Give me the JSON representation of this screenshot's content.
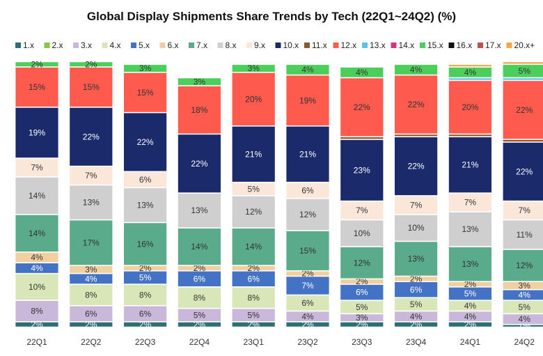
{
  "chart_data": {
    "type": "bar",
    "stacked": true,
    "title": "Global Display Shipments Share Trends by Tech (22Q1~24Q2) (%)",
    "xlabel": "",
    "ylabel": "",
    "ylim": [
      0,
      100
    ],
    "legend_position": "top",
    "categories": [
      "22Q1",
      "22Q2",
      "22Q3",
      "22Q4",
      "23Q1",
      "23Q2",
      "23Q3",
      "23Q4",
      "24Q1",
      "24Q2"
    ],
    "series": [
      {
        "name": "1.x",
        "color": "#2e6f73",
        "values": [
          2,
          2,
          2,
          2,
          2,
          2,
          2,
          2,
          2,
          1
        ]
      },
      {
        "name": "2.x",
        "color": "#8cc63f",
        "values": [
          0,
          0,
          0,
          0,
          0,
          0,
          0,
          0,
          0,
          0
        ]
      },
      {
        "name": "3.x",
        "color": "#c9b8d9",
        "values": [
          8,
          6,
          6,
          5,
          5,
          4,
          3,
          4,
          4,
          4
        ]
      },
      {
        "name": "4.x",
        "color": "#d9e6b8",
        "values": [
          10,
          8,
          8,
          8,
          8,
          6,
          5,
          5,
          4,
          5
        ]
      },
      {
        "name": "5.x",
        "color": "#4472c4",
        "values": [
          4,
          4,
          5,
          6,
          6,
          7,
          6,
          6,
          5,
          4
        ]
      },
      {
        "name": "6.x",
        "color": "#f0cfa0",
        "values": [
          4,
          3,
          2,
          2,
          2,
          2,
          2,
          2,
          2,
          3
        ]
      },
      {
        "name": "7.x",
        "color": "#5aab8c",
        "values": [
          14,
          17,
          16,
          14,
          14,
          15,
          12,
          13,
          13,
          12
        ]
      },
      {
        "name": "8.x",
        "color": "#cfcfcf",
        "values": [
          14,
          13,
          13,
          13,
          12,
          12,
          10,
          10,
          13,
          11
        ]
      },
      {
        "name": "9.x",
        "color": "#fbe6da",
        "values": [
          7,
          7,
          6,
          0,
          5,
          6,
          7,
          7,
          7,
          7
        ]
      },
      {
        "name": "10.x",
        "color": "#1b2a6b",
        "values": [
          19,
          22,
          22,
          22,
          21,
          21,
          23,
          22,
          21,
          22
        ]
      },
      {
        "name": "11.x",
        "color": "#8b5a2b",
        "values": [
          0,
          0,
          0,
          0,
          0,
          0,
          1,
          1,
          1,
          1
        ]
      },
      {
        "name": "12.x",
        "color": "#ff5a4e",
        "values": [
          15,
          15,
          15,
          18,
          20,
          19,
          22,
          22,
          20,
          22
        ]
      },
      {
        "name": "13.x",
        "color": "#5bc0eb",
        "values": [
          0,
          0,
          0,
          0,
          0,
          0,
          0,
          0,
          1,
          1
        ]
      },
      {
        "name": "14.x",
        "color": "#d6337f",
        "values": [
          0,
          0,
          0,
          0,
          0,
          0,
          0,
          0,
          0,
          0
        ]
      },
      {
        "name": "15.x",
        "color": "#4ccf5a",
        "values": [
          2,
          2,
          3,
          3,
          3,
          4,
          4,
          4,
          4,
          5
        ]
      },
      {
        "name": "16.x",
        "color": "#111111",
        "values": [
          0,
          0,
          0,
          0,
          0,
          0,
          0,
          0,
          0,
          0
        ]
      },
      {
        "name": "17.x",
        "color": "#c0504d",
        "values": [
          0,
          0,
          0,
          0,
          0,
          0,
          0,
          0,
          0,
          0
        ]
      },
      {
        "name": "20.x+",
        "color": "#f4a742",
        "values": [
          0,
          0,
          0,
          0,
          0,
          0,
          0,
          0,
          1,
          1
        ]
      }
    ],
    "data_labels": {
      "1.x": [
        "2%",
        "2%",
        "2%",
        "2%",
        "2%",
        "2%",
        "2%",
        "2%",
        "2%",
        "1%"
      ],
      "3.x": [
        "8%",
        "6%",
        "6%",
        "5%",
        "5%",
        "4%",
        "3%",
        "4%",
        "4%",
        "4%"
      ],
      "4.x": [
        "10%",
        "8%",
        "8%",
        "8%",
        "8%",
        "6%",
        "5%",
        "5%",
        "4%",
        "5%"
      ],
      "5.x": [
        "4%",
        "4%",
        "5%",
        "6%",
        "6%",
        "7%",
        "6%",
        "6%",
        "5%",
        "4%"
      ],
      "6.x": [
        "4%",
        "3%",
        "2%",
        "2%",
        "2%",
        "2%",
        "2%",
        "2%",
        "2%",
        "3%"
      ],
      "7.x": [
        "14%",
        "17%",
        "16%",
        "14%",
        "14%",
        "15%",
        "12%",
        "13%",
        "13%",
        "12%"
      ],
      "8.x": [
        "14%",
        "13%",
        "13%",
        "13%",
        "12%",
        "12%",
        "10%",
        "10%",
        "13%",
        "11%"
      ],
      "9.x": [
        "7%",
        "7%",
        "6%",
        "",
        "5%",
        "6%",
        "7%",
        "7%",
        "7%",
        "7%"
      ],
      "10.x": [
        "19%",
        "22%",
        "22%",
        "22%",
        "21%",
        "21%",
        "23%",
        "22%",
        "21%",
        "22%"
      ],
      "12.x": [
        "15%",
        "15%",
        "15%",
        "18%",
        "20%",
        "19%",
        "22%",
        "22%",
        "20%",
        "22%"
      ],
      "15.x": [
        "2%",
        "2%",
        "3%",
        "3%",
        "3%",
        "4%",
        "4%",
        "4%",
        "4%",
        "5%"
      ]
    }
  }
}
